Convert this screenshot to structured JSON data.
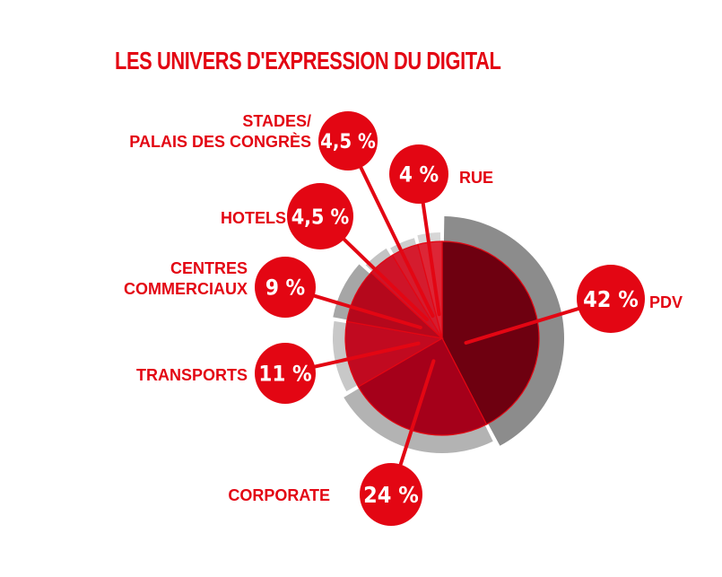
{
  "chart_data": {
    "type": "pie",
    "title": "LES UNIVERS D'EXPRESSION DU DIGITAL",
    "slices": [
      {
        "label": "PDV",
        "value": 42,
        "value_label": "42 %"
      },
      {
        "label": "CORPORATE",
        "value": 24,
        "value_label": "24 %"
      },
      {
        "label": "TRANSPORTS",
        "value": 11,
        "value_label": "11 %"
      },
      {
        "label": "CENTRES COMMERCIAUX",
        "label_lines": [
          "CENTRES",
          "COMMERCIAUX"
        ],
        "value": 9,
        "value_label": "9 %"
      },
      {
        "label": "HOTELS",
        "value": 4.5,
        "value_label": "4,5 %"
      },
      {
        "label": "STADES/ PALAIS DES CONGRÈS",
        "label_lines": [
          "STADES/",
          "PALAIS DES CONGRÈS"
        ],
        "value": 4.5,
        "value_label": "4,5 %"
      },
      {
        "label": "RUE",
        "value": 4,
        "value_label": "4 %"
      }
    ],
    "colors": {
      "accent": "#e30613",
      "slices": [
        "#6e0010",
        "#a5001a",
        "#c10a20",
        "#b5081c",
        "#cf1428",
        "#d51c2e",
        "#dd2636"
      ],
      "rings": [
        "#8c8c8c",
        "#b3b3b3",
        "#c8c8c8",
        "#a6a6a6",
        "#c3c3c3",
        "#cdcdcd",
        "#d7d7d7"
      ]
    }
  }
}
